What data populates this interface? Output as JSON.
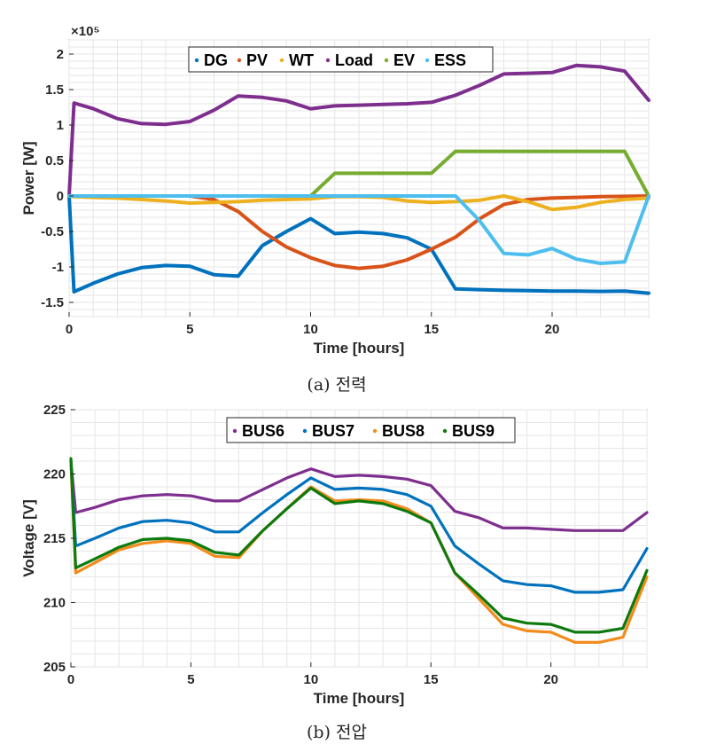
{
  "chart_data": [
    {
      "type": "line",
      "caption": "(a) 전력",
      "xlabel": "Time [hours]",
      "ylabel": "Power [W]",
      "exponent_label": "×10⁵",
      "xlim": [
        0,
        24
      ],
      "ylim": [
        -1.7,
        2.2
      ],
      "xticks": [
        0,
        5,
        10,
        15,
        20
      ],
      "yticks": [
        -1.5,
        -1,
        -0.5,
        0,
        0.5,
        1,
        1.5,
        2
      ],
      "ytick_labels": [
        "-1.5",
        "-1",
        "-0.5",
        "0",
        "0.5",
        "1",
        "1.5",
        "2"
      ],
      "grid": true,
      "legend_position": "top-center",
      "x": [
        0,
        0.2,
        1,
        2,
        3,
        4,
        5,
        6,
        7,
        8,
        9,
        10,
        11,
        12,
        13,
        14,
        15,
        16,
        17,
        18,
        19,
        20,
        21,
        22,
        23,
        24
      ],
      "series": [
        {
          "name": "DG",
          "color": "#0072BD",
          "values": [
            0,
            -1.35,
            -1.23,
            -1.1,
            -1.01,
            -0.98,
            -0.99,
            -1.11,
            -1.13,
            -0.7,
            -0.5,
            -0.32,
            -0.53,
            -0.51,
            -0.53,
            -0.59,
            -0.75,
            -1.31,
            -1.32,
            -1.33,
            -1.335,
            -1.34,
            -1.34,
            -1.345,
            -1.34,
            -1.37
          ]
        },
        {
          "name": "PV",
          "color": "#D95319",
          "values": [
            0,
            0,
            0,
            0,
            0,
            0,
            0,
            -0.05,
            -0.22,
            -0.5,
            -0.72,
            -0.87,
            -0.98,
            -1.02,
            -0.99,
            -0.9,
            -0.75,
            -0.58,
            -0.32,
            -0.12,
            -0.05,
            -0.03,
            -0.02,
            -0.01,
            -0.005,
            0
          ]
        },
        {
          "name": "WT",
          "color": "#EDB120",
          "values": [
            0,
            -0.01,
            -0.02,
            -0.03,
            -0.05,
            -0.07,
            -0.1,
            -0.09,
            -0.08,
            -0.06,
            -0.05,
            -0.04,
            -0.01,
            -0.01,
            -0.02,
            -0.07,
            -0.09,
            -0.08,
            -0.06,
            0,
            -0.08,
            -0.19,
            -0.16,
            -0.09,
            -0.05,
            -0.03
          ]
        },
        {
          "name": "Load",
          "color": "#7E2F8E",
          "values": [
            0,
            1.31,
            1.23,
            1.09,
            1.02,
            1.01,
            1.05,
            1.21,
            1.41,
            1.39,
            1.34,
            1.23,
            1.27,
            1.28,
            1.29,
            1.3,
            1.32,
            1.42,
            1.56,
            1.72,
            1.73,
            1.74,
            1.84,
            1.82,
            1.76,
            1.35
          ]
        },
        {
          "name": "EV",
          "color": "#77AC30",
          "values": [
            0,
            0,
            0,
            0,
            0,
            0,
            0,
            0,
            0,
            0,
            0,
            0,
            0.32,
            0.32,
            0.32,
            0.32,
            0.32,
            0.63,
            0.63,
            0.63,
            0.63,
            0.63,
            0.63,
            0.63,
            0.63,
            0
          ]
        },
        {
          "name": "ESS",
          "color": "#4DBEEE",
          "values": [
            0,
            0,
            0,
            0,
            0,
            0,
            0,
            0,
            0,
            0,
            0,
            0,
            0,
            0,
            0,
            0,
            0,
            0,
            -0.35,
            -0.81,
            -0.83,
            -0.74,
            -0.89,
            -0.95,
            -0.93,
            0
          ]
        }
      ]
    },
    {
      "type": "line",
      "caption": "(b) 전압",
      "xlabel": "Time [hours]",
      "ylabel": "Voltage [V]",
      "xlim": [
        0,
        24
      ],
      "ylim": [
        205,
        225
      ],
      "xticks": [
        0,
        5,
        10,
        15,
        20
      ],
      "yticks": [
        205,
        210,
        215,
        220,
        225
      ],
      "ytick_labels": [
        "205",
        "210",
        "215",
        "220",
        "225"
      ],
      "grid": true,
      "legend_position": "top-center",
      "x": [
        0,
        0.2,
        1,
        2,
        3,
        4,
        5,
        6,
        7,
        8,
        9,
        10,
        11,
        12,
        13,
        14,
        15,
        16,
        17,
        18,
        19,
        20,
        21,
        22,
        23,
        24
      ],
      "series": [
        {
          "name": "BUS6",
          "color": "#7E2F8E",
          "values": [
            221,
            217.0,
            217.4,
            218.0,
            218.3,
            218.4,
            218.3,
            217.9,
            217.9,
            218.8,
            219.7,
            220.4,
            219.8,
            219.9,
            219.8,
            219.6,
            219.1,
            217.1,
            216.6,
            215.8,
            215.8,
            215.7,
            215.6,
            215.6,
            215.6,
            217.0
          ]
        },
        {
          "name": "BUS7",
          "color": "#0072BD",
          "values": [
            221,
            214.4,
            215.0,
            215.8,
            216.3,
            216.4,
            216.2,
            215.5,
            215.5,
            217.0,
            218.4,
            219.7,
            218.8,
            218.9,
            218.8,
            218.4,
            217.5,
            214.4,
            213.0,
            211.7,
            211.4,
            211.3,
            210.8,
            210.8,
            211.0,
            214.2
          ]
        },
        {
          "name": "BUS8",
          "color": "#F28C1C",
          "values": [
            221,
            212.3,
            213.1,
            214.1,
            214.6,
            214.8,
            214.6,
            213.6,
            213.5,
            215.6,
            217.3,
            219.0,
            217.9,
            218.0,
            217.9,
            217.3,
            216.2,
            212.3,
            210.3,
            208.3,
            207.8,
            207.7,
            206.9,
            206.9,
            207.3,
            212.0
          ]
        },
        {
          "name": "BUS9",
          "color": "#0E7A0E",
          "values": [
            221.2,
            212.7,
            213.4,
            214.3,
            214.9,
            215.0,
            214.8,
            213.9,
            213.7,
            215.6,
            217.3,
            218.9,
            217.7,
            217.9,
            217.7,
            217.1,
            216.2,
            212.3,
            210.6,
            208.8,
            208.4,
            208.3,
            207.7,
            207.7,
            208.0,
            212.5
          ]
        }
      ]
    }
  ]
}
